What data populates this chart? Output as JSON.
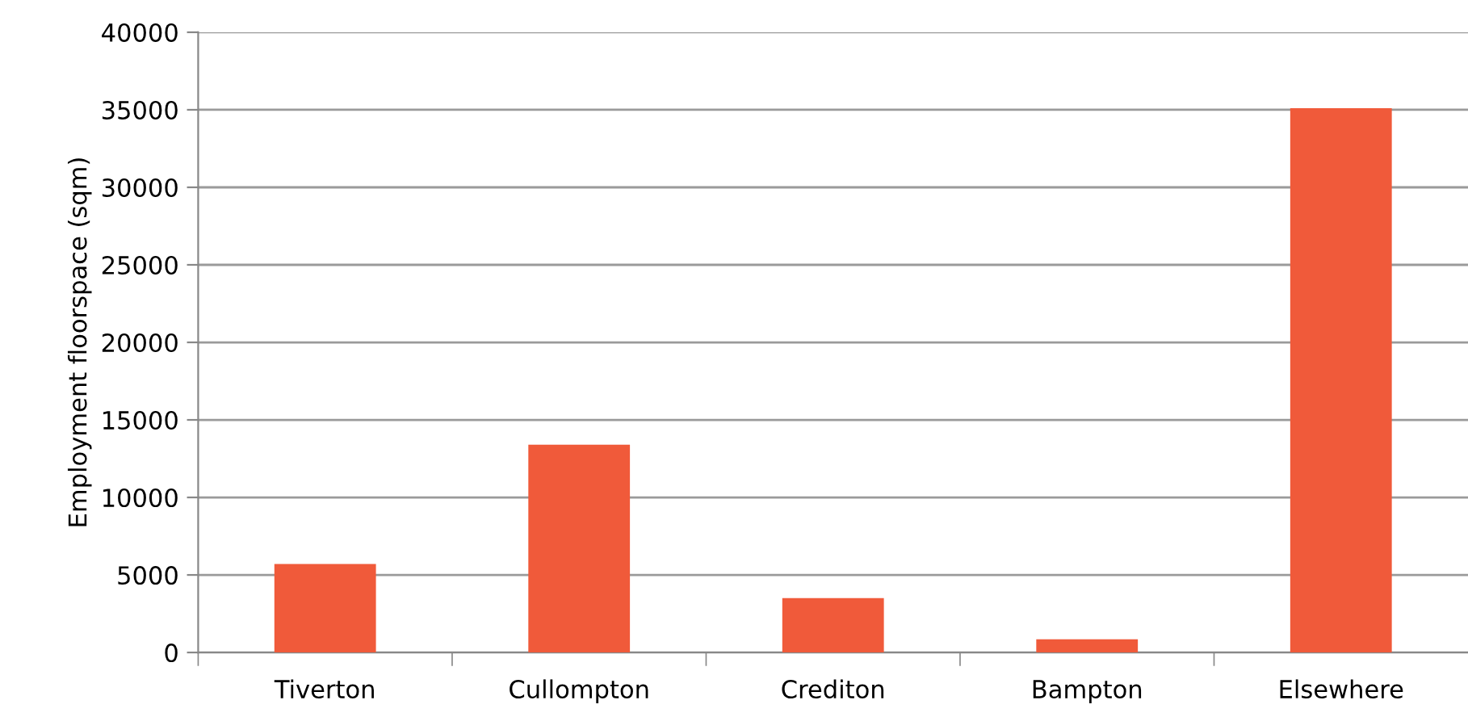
{
  "chart_data": {
    "type": "bar",
    "ylabel": "Employment floorspace (sqm)",
    "categories": [
      "Tiverton",
      "Cullompton",
      "Crediton",
      "Bampton",
      "Elsewhere"
    ],
    "values": [
      5700,
      13400,
      3500,
      850,
      35100
    ],
    "color": "#f05a3a",
    "ylim": [
      0,
      40000
    ],
    "yticks": [
      0,
      5000,
      10000,
      15000,
      20000,
      25000,
      30000,
      35000,
      40000
    ],
    "grid": "y"
  }
}
